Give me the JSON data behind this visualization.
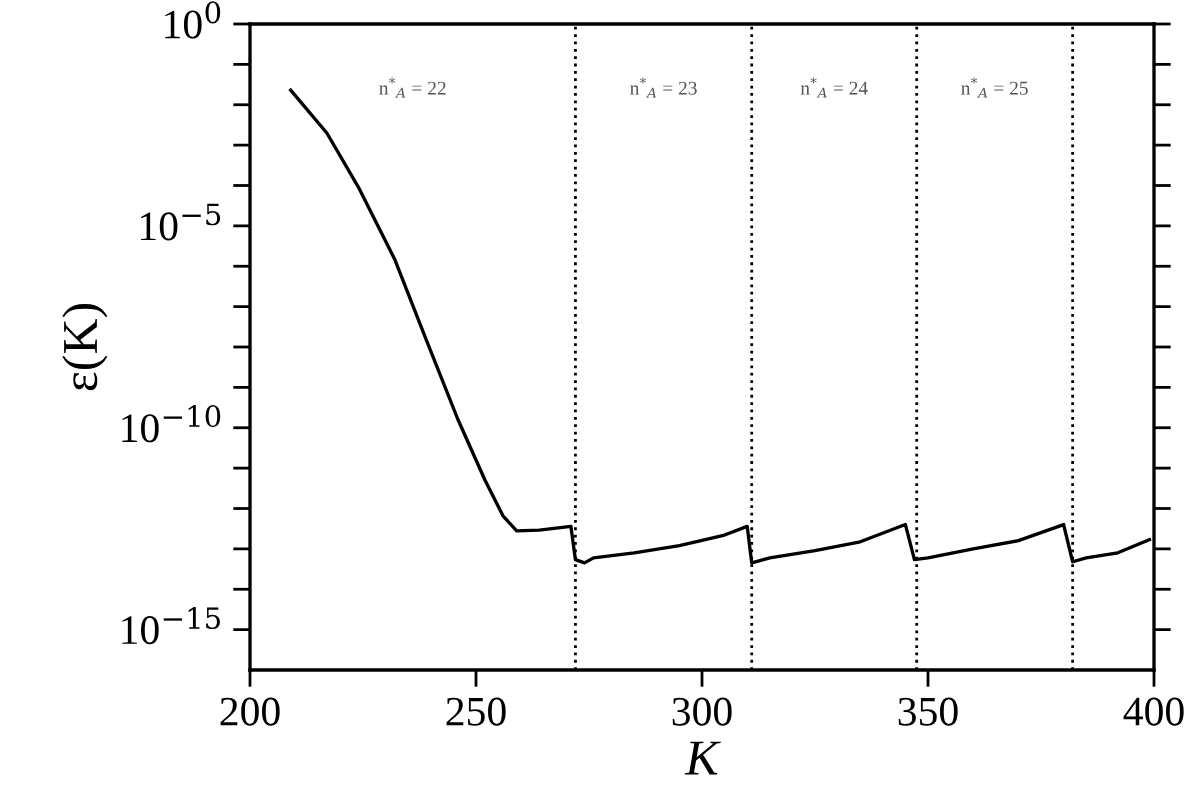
{
  "chart_data": {
    "type": "line",
    "xlabel": "K",
    "ylabel": "ε(K)",
    "log": "y",
    "grid": false,
    "legend": false,
    "marker": "none",
    "line_style": "solid",
    "xlim": [
      200,
      400
    ],
    "xticks": [
      200,
      250,
      300,
      350,
      400
    ],
    "ylim": [
      1e-16,
      1
    ],
    "yticks": [
      {
        "value": 1,
        "label": "10$^{0}$"
      },
      {
        "value": 0.1,
        "label": null
      },
      {
        "value": 0.01,
        "label": null
      },
      {
        "value": 0.001,
        "label": null
      },
      {
        "value": 0.0001,
        "label": null
      },
      {
        "value": 1e-05,
        "label": "10$^{−5}$"
      },
      {
        "value": 1e-06,
        "label": null
      },
      {
        "value": 1e-07,
        "label": null
      },
      {
        "value": 1e-08,
        "label": null
      },
      {
        "value": 1e-09,
        "label": null
      },
      {
        "value": 1e-10,
        "label": "10$^{−10}$"
      },
      {
        "value": 1e-11,
        "label": null
      },
      {
        "value": 1e-12,
        "label": null
      },
      {
        "value": 1e-13,
        "label": null
      },
      {
        "value": 1e-14,
        "label": null
      },
      {
        "value": 1e-15,
        "label": "10$^{−15}$"
      }
    ],
    "series": [
      {
        "color": "#000000",
        "x": [
          209,
          217,
          224,
          232,
          239,
          246,
          252,
          256,
          259,
          264,
          271,
          272,
          274,
          276,
          285,
          295,
          305,
          310,
          311,
          315,
          325,
          335,
          345,
          347,
          350,
          360,
          370,
          380,
          382,
          385,
          392,
          399
        ],
        "values": [
          0.023,
          0.002,
          9e-05,
          1.5e-06,
          1.5e-08,
          1.6e-10,
          5e-12,
          6.5e-13,
          2.8e-13,
          2.9e-13,
          3.6e-13,
          5.4e-14,
          4.5e-14,
          6e-14,
          8e-14,
          1.2e-13,
          2.2e-13,
          3.6e-13,
          4.5e-14,
          6e-14,
          9e-14,
          1.5e-13,
          4e-13,
          5.4e-14,
          6e-14,
          1e-13,
          1.6e-13,
          4e-13,
          4.8e-14,
          6e-14,
          8e-14,
          1.7e-13
        ]
      }
    ],
    "ref_lines": [
      {
        "axis": "x",
        "value": 272,
        "color": "#000000",
        "line_style": "dotted"
      },
      {
        "axis": "x",
        "value": 311,
        "color": "#000000",
        "line_style": "dotted"
      },
      {
        "axis": "x",
        "value": 347.5,
        "color": "#000000",
        "line_style": "dotted"
      },
      {
        "axis": "x",
        "value": 382,
        "color": "#000000",
        "line_style": "dotted"
      }
    ],
    "annotations": [
      "n$^{*}$$_{A}$ = 22",
      "n$^{*}$$_{A}$ = 23",
      "n$^{*}$$_{A}$ = 24",
      "n$^{*}$$_{A}$ = 25"
    ]
  }
}
